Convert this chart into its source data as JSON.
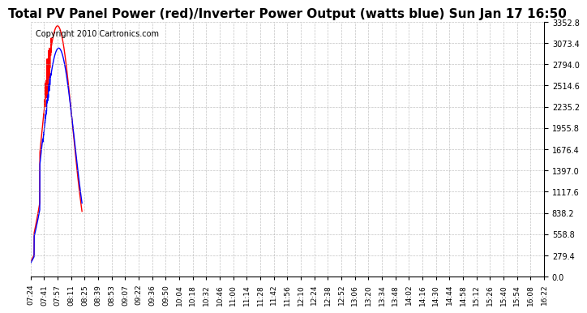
{
  "title": "Total PV Panel Power (red)/Inverter Power Output (watts blue) Sun Jan 17 16:50",
  "copyright": "Copyright 2010 Cartronics.com",
  "copyright_fontsize": 7,
  "title_fontsize": 11,
  "background_color": "#ffffff",
  "plot_bg_color": "#ffffff",
  "grid_color": "#aaaaaa",
  "line_color_red": "#ff0000",
  "line_color_blue": "#0000ff",
  "line_width": 1.0,
  "y_ticks": [
    0.0,
    279.4,
    558.8,
    838.2,
    1117.6,
    1397.0,
    1676.4,
    1955.8,
    2235.2,
    2514.6,
    2794.0,
    3073.4,
    3352.8
  ],
  "ylim": [
    0.0,
    3352.8
  ],
  "x_tick_labels": [
    "07:24",
    "07:41",
    "07:57",
    "08:11",
    "08:25",
    "08:39",
    "08:53",
    "09:07",
    "09:22",
    "09:36",
    "09:50",
    "10:04",
    "10:18",
    "10:32",
    "10:46",
    "11:00",
    "11:14",
    "11:28",
    "11:42",
    "11:56",
    "12:10",
    "12:24",
    "12:38",
    "12:52",
    "13:06",
    "13:20",
    "13:34",
    "13:48",
    "14:02",
    "14:16",
    "14:30",
    "14:44",
    "14:58",
    "15:12",
    "15:26",
    "15:40",
    "15:54",
    "16:08",
    "16:22"
  ]
}
